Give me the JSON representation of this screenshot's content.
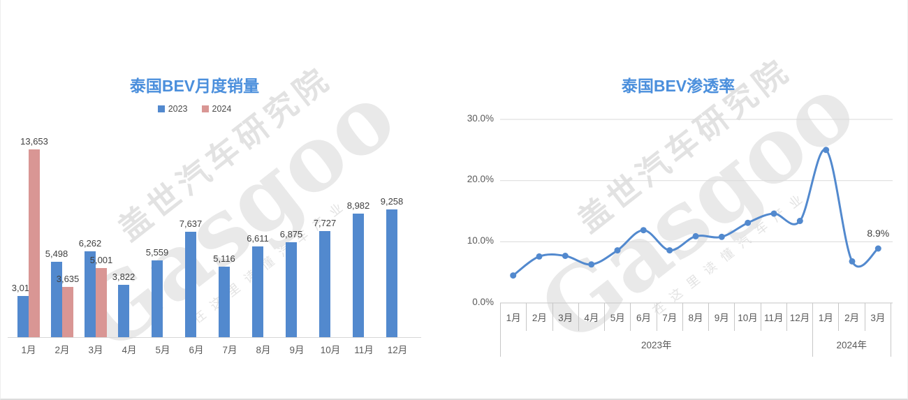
{
  "colors": {
    "title_blue": "#4b8fdc",
    "series_blue": "#5289ce",
    "series_pink": "#d99694",
    "gridline": "#d9d9d9",
    "axis_line": "#c6c6c6"
  },
  "watermark": {
    "line1": "盖世汽车研究院",
    "line2": "Gasgoo",
    "line3": "在这里读懂汽车产业"
  },
  "charts": {
    "sales": {
      "title": "泰国BEV月度销量"
    },
    "penetration": {
      "title": "泰国BEV渗透率"
    }
  },
  "chart_data": [
    {
      "type": "bar",
      "title": "泰国BEV月度销量",
      "categories": [
        "1月",
        "2月",
        "3月",
        "4月",
        "5月",
        "6月",
        "7月",
        "8月",
        "9月",
        "10月",
        "11月",
        "12月"
      ],
      "series": [
        {
          "name": "2023",
          "color": "#5289ce",
          "values": [
            3017,
            5498,
            6262,
            3822,
            5559,
            7637,
            5116,
            6611,
            6875,
            7727,
            8982,
            9258
          ]
        },
        {
          "name": "2024",
          "color": "#d99694",
          "values": [
            13653,
            3635,
            5001,
            null,
            null,
            null,
            null,
            null,
            null,
            null,
            null,
            null
          ]
        }
      ],
      "ylim": [
        0,
        14200
      ],
      "data_labels": true,
      "legend_position": "top",
      "grid": false
    },
    {
      "type": "line",
      "title": "泰国BEV渗透率",
      "x_months": [
        "1月",
        "2月",
        "3月",
        "4月",
        "5月",
        "6月",
        "7月",
        "8月",
        "9月",
        "10月",
        "11月",
        "12月",
        "1月",
        "2月",
        "3月"
      ],
      "x_years": [
        {
          "label": "2023年",
          "span": 12
        },
        {
          "label": "2024年",
          "span": 3
        }
      ],
      "values": [
        4.5,
        7.6,
        7.7,
        6.3,
        8.6,
        11.9,
        8.6,
        10.9,
        10.8,
        13.1,
        14.6,
        13.4,
        25.0,
        6.8,
        8.9
      ],
      "unit": "%",
      "ylim": [
        0,
        30
      ],
      "yticks": [
        "30.0%",
        "20.0%",
        "10.0%",
        "0.0%"
      ],
      "grid": true,
      "last_point_label": "8.9%",
      "color": "#5289ce"
    }
  ]
}
